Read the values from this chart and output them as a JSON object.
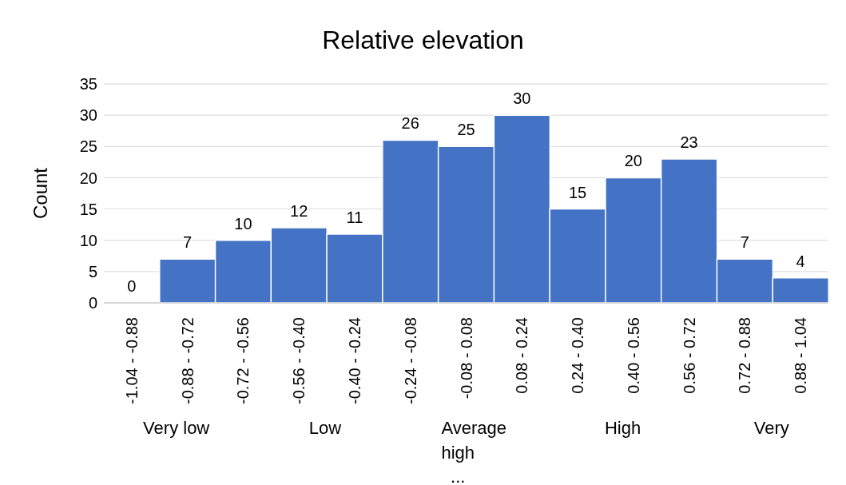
{
  "chart_data": {
    "type": "bar",
    "title": "Relative elevation",
    "ylabel": "Count",
    "categories": [
      "-1.04 - -0.88",
      "-0.88 - -0.72",
      "-0.72 - -0.56",
      "-0.56 - -0.40",
      "-0.40 - -0.24",
      "-0.24 - -0.08",
      "-0.08 - 0.08",
      "0.08 - 0.24",
      "0.24 - 0.40",
      "0.40 - 0.56",
      "0.56 - 0.72",
      "0.72 - 0.88",
      "0.88 - 1.04"
    ],
    "values": [
      0,
      7,
      10,
      12,
      11,
      26,
      25,
      30,
      15,
      20,
      23,
      7,
      4
    ],
    "color": "#4472c4",
    "ylim": [
      0,
      35
    ],
    "yticks": [
      0,
      5,
      10,
      15,
      20,
      25,
      30,
      35
    ],
    "grid": "y",
    "data_labels": true,
    "annotations": [
      "Very low",
      "Low",
      "Average",
      "High",
      "Very",
      "high",
      "..."
    ]
  }
}
